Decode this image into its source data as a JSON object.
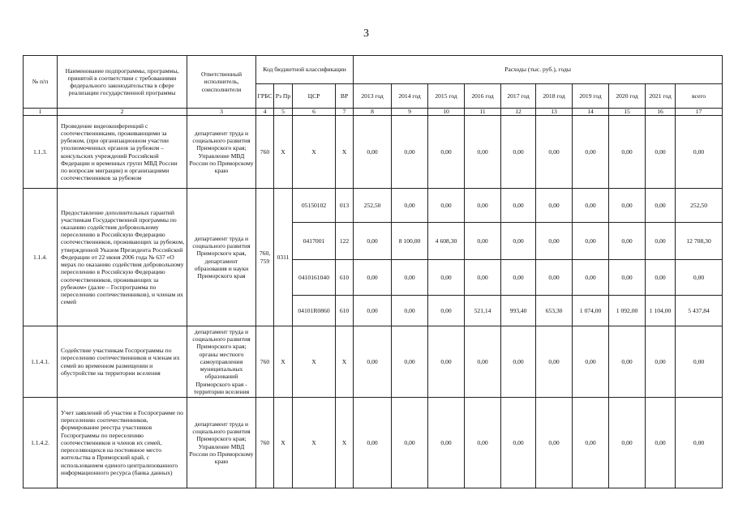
{
  "page_number": "3",
  "header": {
    "col_no": "№ п/п",
    "col_name": "Наименование подпрограммы, программы, принятой в соответствии с требованиями федерального законодательства в сфере реализации государственной программы",
    "col_resp": "Ответственный исполнитель, соисполнители",
    "col_code": "Код бюджетной классификации",
    "col_grbs": "ГРБС",
    "col_rzpr": "Рз Пр",
    "col_csr": "ЦСР",
    "col_vr": "ВР",
    "col_exp": "Расходы (тыс. руб.), годы",
    "years": [
      "2013 год",
      "2014 год",
      "2015 год",
      "2016 год",
      "2017 год",
      "2018 год",
      "2019 год",
      "2020 год",
      "2021 год",
      "всего"
    ],
    "numbers": [
      "1",
      "2",
      "3",
      "4",
      "5",
      "6",
      "7",
      "8",
      "9",
      "10",
      "11",
      "12",
      "13",
      "14",
      "15",
      "16",
      "17"
    ]
  },
  "rows": [
    {
      "no": "1.1.3.",
      "name": "Проведение видеоконференций с соотечественниками, проживающими за рубежом, (при организационном участии уполномоченных органов за рубежом – консульских учреждений Российской Федерации и временных групп МВД России по вопросам миграции) и организациями соотечественников за рубежом",
      "resp": "департамент труда и социального развития Приморского края; Управление МВД России по Приморскому краю",
      "grbs": "760",
      "rzpr": "X",
      "sub": [
        {
          "csr": "X",
          "vr": "X",
          "vals": [
            "0,00",
            "0,00",
            "0,00",
            "0,00",
            "0,00",
            "0,00",
            "0,00",
            "0,00",
            "0,00",
            "0,00"
          ]
        }
      ]
    },
    {
      "no": "1.1.4.",
      "name": "Предоставление дополнительных гарантий участникам Государственной программы по оказанию содействия добровольному переселению в Российскую Федерацию соотечественников, проживающих за рубежом, утвержденной Указом Президента Российской Федерации от 22 июня 2006 года № 637 «О мерах по оказанию содействия добровольному переселению в Российскую Федерацию соотечественников, проживающих за рубежом» (далее – Госпрограмма по переселению соотечественников), и членам их семей",
      "resp": "департамент труда и социального развития Приморского края, департамент образования и науки Приморского края",
      "grbs": "760, 759",
      "rzpr": "0311",
      "sub": [
        {
          "csr": "05150102",
          "vr": "013",
          "vals": [
            "252,50",
            "0,00",
            "0,00",
            "0,00",
            "0,00",
            "0,00",
            "0,00",
            "0,00",
            "0,00",
            "252,50"
          ]
        },
        {
          "csr": "0417001",
          "vr": "122",
          "vals": [
            "0,00",
            "8 100,00",
            "4 608,30",
            "0,00",
            "0,00",
            "0,00",
            "0,00",
            "0,00",
            "0,00",
            "12 708,30"
          ]
        },
        {
          "csr": "0410161040",
          "vr": "610",
          "vals": [
            "0,00",
            "0,00",
            "0,00",
            "0,00",
            "0,00",
            "0,00",
            "0,00",
            "0,00",
            "0,00",
            "0,00"
          ]
        },
        {
          "csr": "04101R0860",
          "vr": "610",
          "vals": [
            "0,00",
            "0,00",
            "0,00",
            "521,14",
            "993,40",
            "653,30",
            "1 074,00",
            "1 092,00",
            "1 104,00",
            "5 437,84"
          ]
        }
      ]
    },
    {
      "no": "1.1.4.1.",
      "name": "Содействие участникам Госпрограммы по переселению соотечественников и членам их семей во временном размещении и обустройстве на территории вселения",
      "resp": "департамент труда и социального развития Приморского края; органы местного самоуправления муниципальных образований Приморского края - территории вселения",
      "grbs": "760",
      "rzpr": "X",
      "sub": [
        {
          "csr": "X",
          "vr": "X",
          "vals": [
            "0,00",
            "0,00",
            "0,00",
            "0,00",
            "0,00",
            "0,00",
            "0,00",
            "0,00",
            "0,00",
            "0,00"
          ]
        }
      ]
    },
    {
      "no": "1.1.4.2.",
      "name": "Учет заявлений об участии в Госпрограмме по переселению соотечественников, формирование реестра участников Госпрограммы по переселению соотечественников и членов их семей, переселяющихся на постоянное место жительства в Приморский край, с использованием единого централизованного информационного ресурса (банка данных)",
      "resp": "департамент труда и социального развития Приморского края; Управление МВД России по Приморскому краю",
      "grbs": "760",
      "rzpr": "X",
      "sub": [
        {
          "csr": "X",
          "vr": "X",
          "vals": [
            "0,00",
            "0,00",
            "0,00",
            "0,00",
            "0,00",
            "0,00",
            "0,00",
            "0,00",
            "0,00",
            "0,00"
          ]
        }
      ]
    }
  ]
}
